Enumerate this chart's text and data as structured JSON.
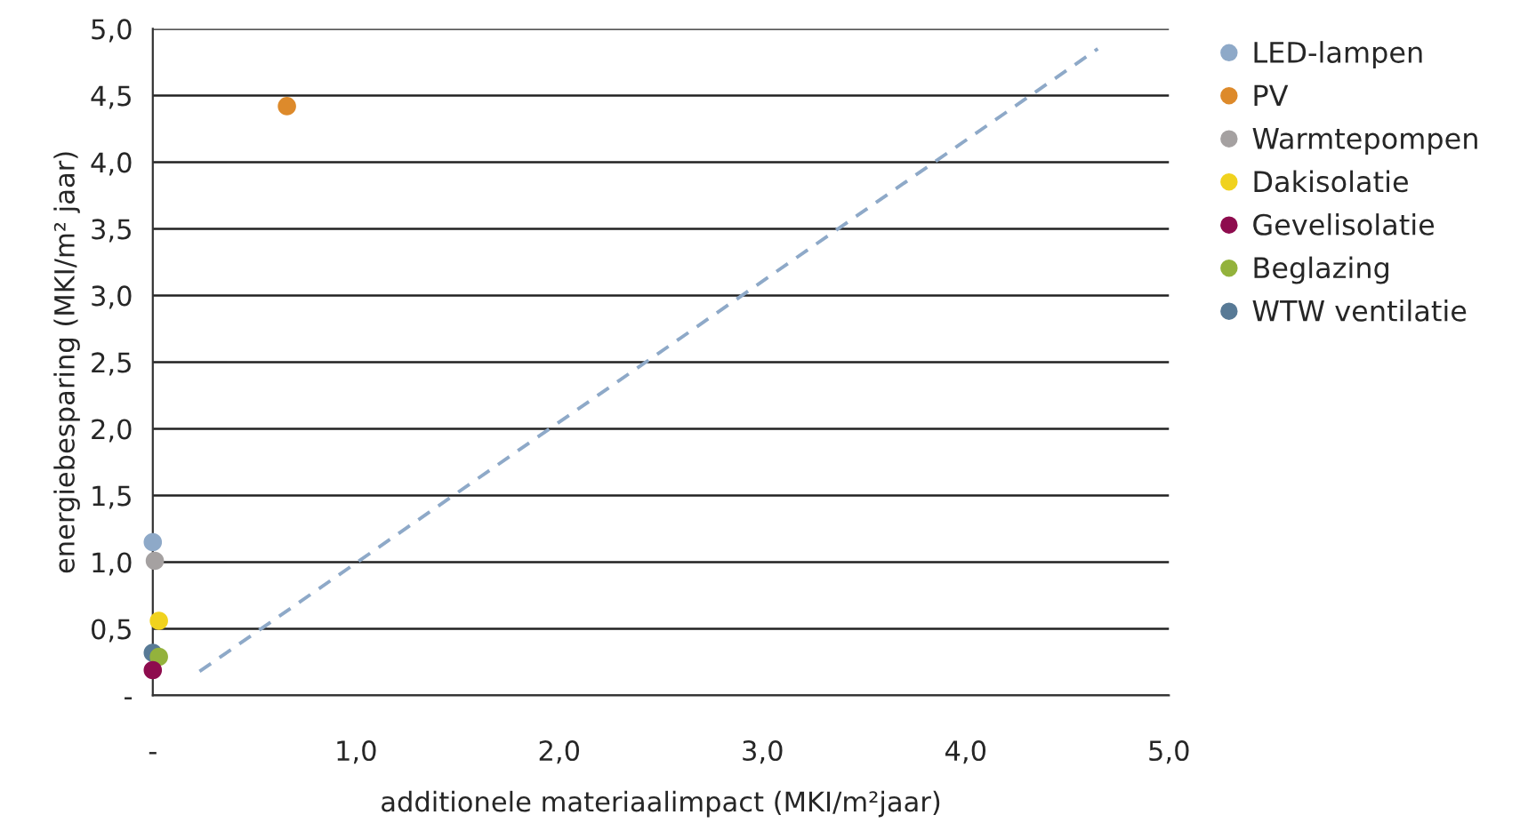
{
  "chart_data": {
    "type": "scatter",
    "xlabel": "additionele materiaalimpact (MKI/m²jaar)",
    "ylabel": "energiebesparing (MKI/m² jaar)",
    "xlim": [
      0,
      5
    ],
    "ylim": [
      0,
      5
    ],
    "xticks": [
      {
        "value": 0,
        "label": "-"
      },
      {
        "value": 1,
        "label": "1,0"
      },
      {
        "value": 2,
        "label": "2,0"
      },
      {
        "value": 3,
        "label": "3,0"
      },
      {
        "value": 4,
        "label": "4,0"
      },
      {
        "value": 5,
        "label": "5,0"
      }
    ],
    "yticks": [
      {
        "value": 0,
        "label": "-"
      },
      {
        "value": 0.5,
        "label": "0,5"
      },
      {
        "value": 1,
        "label": "1,0"
      },
      {
        "value": 1.5,
        "label": "1,5"
      },
      {
        "value": 2,
        "label": "2,0"
      },
      {
        "value": 2.5,
        "label": "2,5"
      },
      {
        "value": 3,
        "label": "3,0"
      },
      {
        "value": 3.5,
        "label": "3,5"
      },
      {
        "value": 4,
        "label": "4,0"
      },
      {
        "value": 4.5,
        "label": "4,5"
      },
      {
        "value": 5,
        "label": "5,0"
      }
    ],
    "grid": "y",
    "legend": "right",
    "marker": "circle",
    "series": [
      {
        "name": "LED-lampen",
        "color": "#8ea9c8",
        "x": [
          0.0
        ],
        "values": [
          1.15
        ]
      },
      {
        "name": "PV",
        "color": "#dd8a2b",
        "x": [
          0.66
        ],
        "values": [
          4.42
        ]
      },
      {
        "name": "Warmtepompen",
        "color": "#a5a1a1",
        "x": [
          0.01
        ],
        "values": [
          1.01
        ]
      },
      {
        "name": "Dakisolatie",
        "color": "#f0d21e",
        "x": [
          0.03
        ],
        "values": [
          0.56
        ]
      },
      {
        "name": "Gevelisolatie",
        "color": "#8e0c4e",
        "x": [
          0.0
        ],
        "values": [
          0.19
        ]
      },
      {
        "name": "Beglazing",
        "color": "#93b23c",
        "x": [
          0.03
        ],
        "values": [
          0.29
        ]
      },
      {
        "name": "WTW ventilatie",
        "color": "#587a96",
        "x": [
          0.0
        ],
        "values": [
          0.32
        ]
      },
      {
        "type": "line",
        "color": "#8ea9c8",
        "line_style": "dashed",
        "marker": "none",
        "x": [
          0.23,
          4.65
        ],
        "values": [
          0.18,
          4.85
        ]
      }
    ]
  }
}
